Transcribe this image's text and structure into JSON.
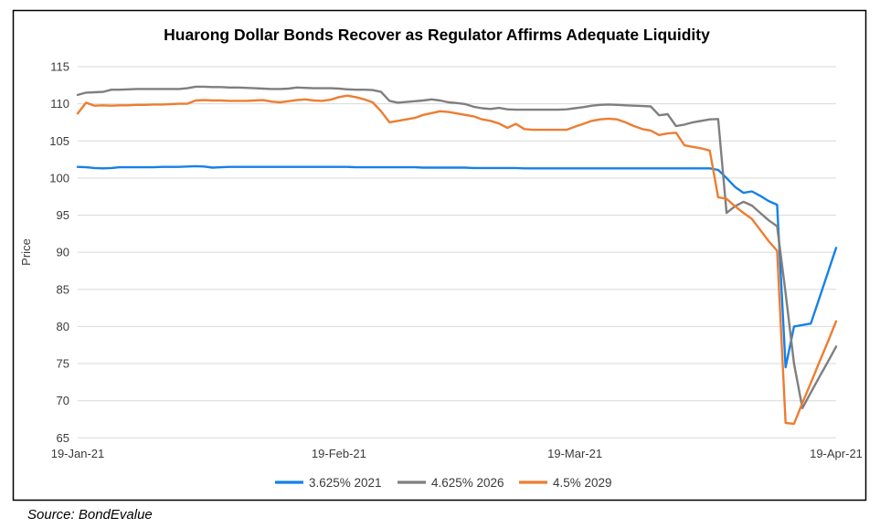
{
  "source_note": "Source: BondEvalue",
  "colors": {
    "series_blue": "#1680EA",
    "series_gray": "#7F7F7F",
    "series_orange": "#ED7D31",
    "gridline": "#D9D9D9",
    "axis_text": "#3b3b3b",
    "chart_border": "#000000",
    "background": "#FFFFFF"
  },
  "chart_data": {
    "type": "line",
    "title": "Huarong Dollar Bonds Recover as Regulator Affirms Adequate Liquidity",
    "xlabel": "",
    "ylabel": "Price",
    "ylim": [
      65,
      115
    ],
    "y_ticks": [
      65,
      70,
      75,
      80,
      85,
      90,
      95,
      100,
      105,
      110,
      115
    ],
    "grid": "horizontal",
    "legend_position": "bottom",
    "x_unit": "calendar days after 19-Jan-21",
    "x_domain_days": [
      0,
      90
    ],
    "x_ticks": [
      {
        "label": "19-Jan-21",
        "day": 0
      },
      {
        "label": "19-Feb-21",
        "day": 31
      },
      {
        "label": "19-Mar-21",
        "day": 59
      },
      {
        "label": "19-Apr-21",
        "day": 90
      }
    ],
    "series": [
      {
        "name": "3.625% 2021",
        "color": "#1680EA",
        "values": [
          101.5,
          101.45,
          101.35,
          101.3,
          101.35,
          101.45,
          101.45,
          101.45,
          101.45,
          101.45,
          101.5,
          101.5,
          101.5,
          101.55,
          101.6,
          101.55,
          101.4,
          101.45,
          101.5,
          101.5,
          101.5,
          101.5,
          101.5,
          101.5,
          101.5,
          101.5,
          101.5,
          101.5,
          101.5,
          101.5,
          101.5,
          101.5,
          101.5,
          101.45,
          101.45,
          101.45,
          101.45,
          101.45,
          101.45,
          101.45,
          101.45,
          101.4,
          101.4,
          101.4,
          101.4,
          101.4,
          101.4,
          101.35,
          101.35,
          101.35,
          101.35,
          101.35,
          101.35,
          101.3,
          101.3,
          101.3,
          101.3,
          101.3,
          101.3,
          101.3,
          101.3,
          101.3,
          101.3,
          101.3,
          101.3,
          101.3,
          101.3,
          101.3,
          101.3,
          101.3,
          101.3,
          101.3,
          101.3,
          101.3,
          101.3,
          101.3,
          101.1,
          100.0,
          98.8,
          98.0,
          98.2,
          97.6,
          96.9,
          96.4,
          74.5,
          80.0,
          80.2,
          80.4,
          83.8,
          87.2,
          90.6
        ]
      },
      {
        "name": "4.625% 2026",
        "color": "#7F7F7F",
        "values": [
          111.2,
          111.5,
          111.55,
          111.6,
          111.9,
          111.9,
          111.95,
          112.0,
          112.0,
          112.0,
          112.0,
          112.0,
          112.0,
          112.1,
          112.3,
          112.3,
          112.25,
          112.25,
          112.2,
          112.2,
          112.15,
          112.1,
          112.05,
          112.0,
          112.0,
          112.05,
          112.2,
          112.15,
          112.1,
          112.1,
          112.1,
          112.05,
          111.95,
          111.9,
          111.9,
          111.85,
          111.6,
          110.4,
          110.15,
          110.25,
          110.35,
          110.45,
          110.6,
          110.45,
          110.2,
          110.1,
          109.95,
          109.6,
          109.4,
          109.3,
          109.45,
          109.25,
          109.2,
          109.2,
          109.2,
          109.2,
          109.2,
          109.2,
          109.25,
          109.4,
          109.55,
          109.75,
          109.85,
          109.9,
          109.85,
          109.8,
          109.75,
          109.7,
          109.65,
          108.45,
          108.6,
          107.0,
          107.2,
          107.5,
          107.7,
          107.9,
          107.95,
          95.3,
          96.2,
          96.8,
          96.3,
          95.3,
          94.3,
          93.5,
          84.5,
          75.0,
          69.0,
          71.1,
          73.2,
          75.2,
          77.3
        ]
      },
      {
        "name": "4.5% 2029",
        "color": "#ED7D31",
        "values": [
          108.7,
          110.15,
          109.75,
          109.8,
          109.75,
          109.8,
          109.8,
          109.85,
          109.85,
          109.9,
          109.9,
          109.95,
          110.0,
          110.0,
          110.45,
          110.5,
          110.45,
          110.45,
          110.4,
          110.4,
          110.4,
          110.45,
          110.5,
          110.3,
          110.2,
          110.35,
          110.5,
          110.6,
          110.45,
          110.4,
          110.55,
          110.9,
          111.1,
          110.9,
          110.6,
          110.2,
          109.0,
          107.5,
          107.7,
          107.9,
          108.1,
          108.5,
          108.75,
          109.0,
          108.9,
          108.7,
          108.5,
          108.3,
          107.9,
          107.7,
          107.35,
          106.75,
          107.3,
          106.6,
          106.5,
          106.5,
          106.5,
          106.5,
          106.5,
          106.9,
          107.3,
          107.7,
          107.9,
          108.0,
          107.9,
          107.5,
          107.0,
          106.6,
          106.4,
          105.8,
          106.0,
          106.1,
          104.4,
          104.2,
          104.0,
          103.7,
          97.4,
          97.2,
          96.2,
          95.3,
          94.5,
          93.0,
          91.5,
          90.2,
          67.0,
          66.9,
          69.7,
          72.4,
          75.2,
          77.9,
          80.7
        ]
      }
    ]
  }
}
